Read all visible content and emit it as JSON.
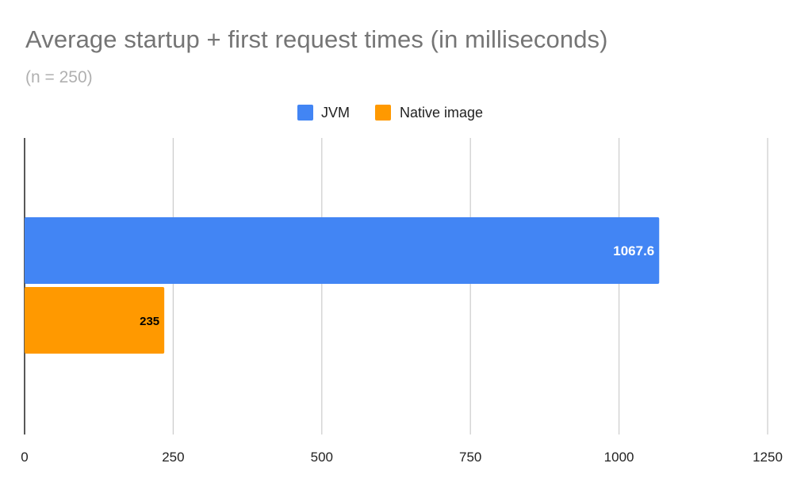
{
  "chart_data": {
    "type": "bar",
    "orientation": "horizontal",
    "title": "Average startup + first request times (in milliseconds)",
    "subtitle": "(n = 250)",
    "categories": [
      ""
    ],
    "series": [
      {
        "name": "JVM",
        "values": [
          1067.6
        ],
        "color": "#4285f4",
        "label_color": "#ffffff"
      },
      {
        "name": "Native image",
        "values": [
          235
        ],
        "color": "#ff9900",
        "label_color": "#000000"
      }
    ],
    "data_labels": [
      "1067.6",
      "235"
    ],
    "xlim": [
      0,
      1250
    ],
    "xticks": [
      "0",
      "250",
      "500",
      "750",
      "1000",
      "1250"
    ],
    "grid": true,
    "legend_position": "top"
  }
}
